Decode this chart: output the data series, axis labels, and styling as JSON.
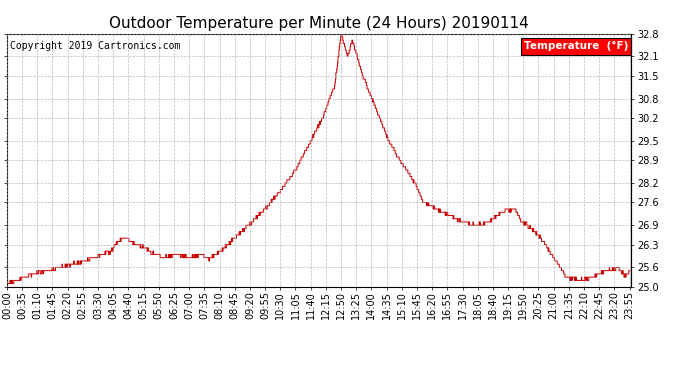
{
  "title": "Outdoor Temperature per Minute (24 Hours) 20190114",
  "copyright_text": "Copyright 2019 Cartronics.com",
  "legend_label": "Temperature  (°F)",
  "line_color": "#cc0000",
  "background_color": "#ffffff",
  "grid_color": "#aaaaaa",
  "ylim": [
    25.0,
    32.8
  ],
  "yticks": [
    25.0,
    25.6,
    26.3,
    26.9,
    27.6,
    28.2,
    28.9,
    29.5,
    30.2,
    30.8,
    31.5,
    32.1,
    32.8
  ],
  "title_fontsize": 11,
  "tick_label_fontsize": 7,
  "copyright_fontsize": 7,
  "legend_fontsize": 7.5,
  "key_points_x": [
    0,
    60,
    120,
    180,
    240,
    255,
    270,
    285,
    300,
    330,
    360,
    390,
    420,
    450,
    465,
    500,
    540,
    580,
    620,
    660,
    700,
    730,
    755,
    770,
    785,
    795,
    820,
    850,
    880,
    910,
    940,
    960,
    990,
    1020,
    1050,
    1080,
    1110,
    1140,
    1170,
    1185,
    1200,
    1230,
    1260,
    1290,
    1320,
    1350,
    1380,
    1410,
    1425,
    1435,
    1439
  ],
  "key_points_y": [
    25.1,
    25.4,
    25.6,
    25.8,
    26.1,
    26.4,
    26.5,
    26.4,
    26.3,
    26.1,
    25.9,
    26.0,
    25.9,
    26.0,
    25.85,
    26.2,
    26.7,
    27.2,
    27.8,
    28.5,
    29.5,
    30.3,
    31.2,
    32.8,
    32.1,
    32.6,
    31.5,
    30.5,
    29.5,
    28.8,
    28.2,
    27.6,
    27.4,
    27.2,
    27.0,
    26.9,
    27.0,
    27.3,
    27.4,
    27.0,
    26.9,
    26.5,
    25.9,
    25.3,
    25.2,
    25.3,
    25.5,
    25.6,
    25.3,
    25.5,
    25.5
  ]
}
